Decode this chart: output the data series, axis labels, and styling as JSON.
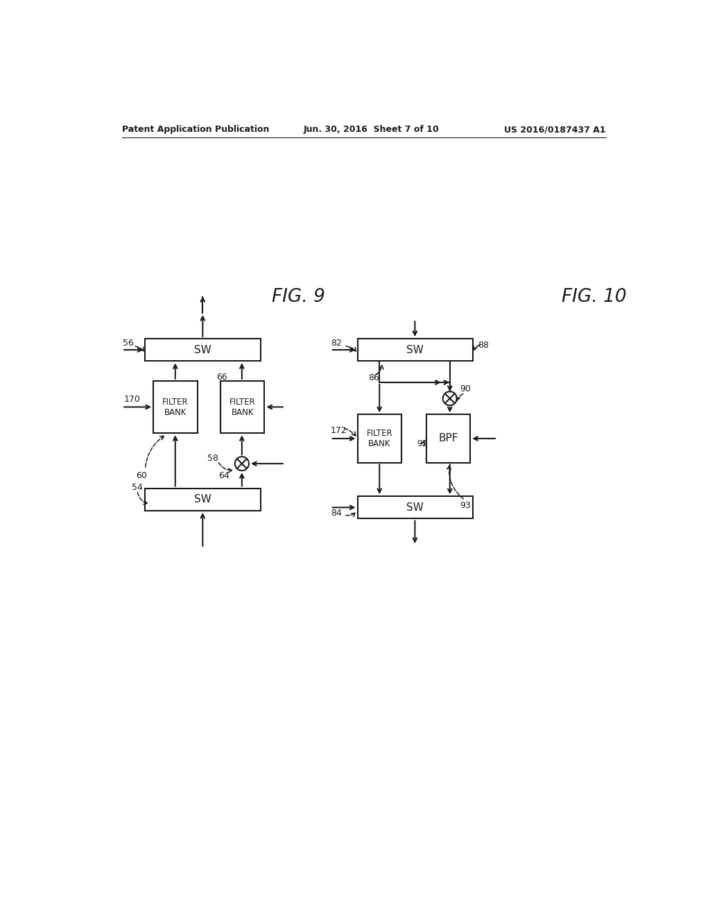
{
  "bg_color": "#ffffff",
  "header_left": "Patent Application Publication",
  "header_center": "Jun. 30, 2016  Sheet 7 of 10",
  "header_right": "US 2016/0187437 A1",
  "fig9_label": "FIG. 9",
  "fig10_label": "FIG. 10",
  "line_color": "#1a1a1a",
  "box_color": "#ffffff",
  "box_edge": "#1a1a1a"
}
